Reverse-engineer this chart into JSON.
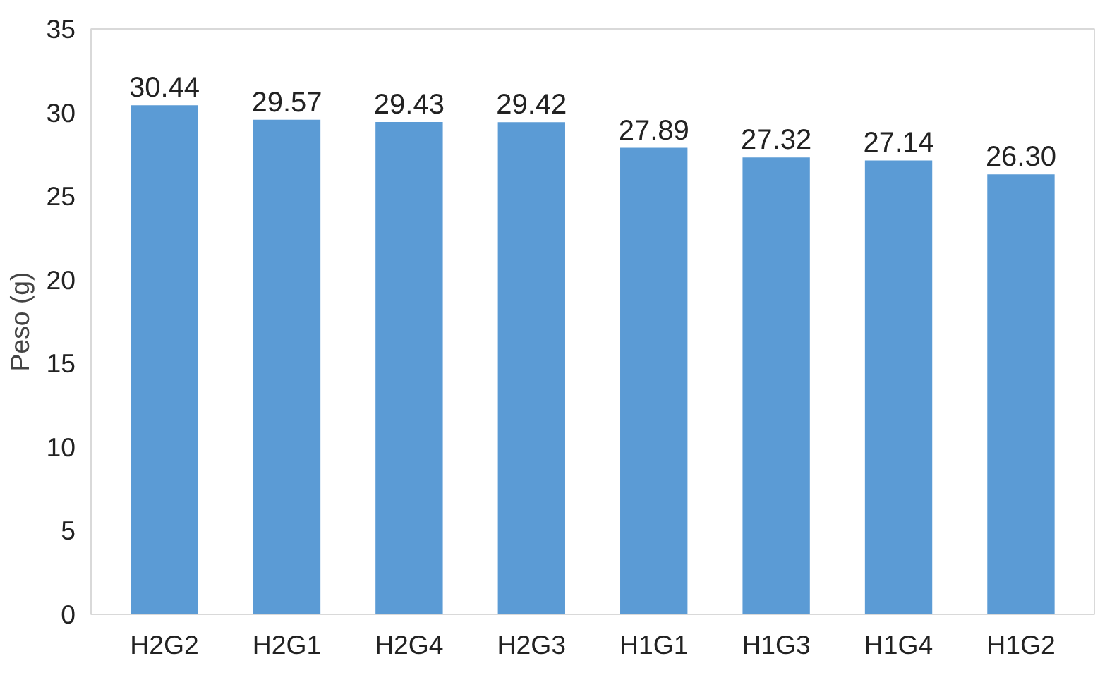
{
  "chart_data": {
    "type": "bar",
    "ylabel": "Peso (g)",
    "categories": [
      "H2G2",
      "H2G1",
      "H2G4",
      "H2G3",
      "H1G1",
      "H1G3",
      "H1G4",
      "H1G2"
    ],
    "values": [
      30.44,
      29.57,
      29.43,
      29.42,
      27.89,
      27.32,
      27.14,
      26.3
    ],
    "value_labels": [
      "30.44",
      "29.57",
      "29.43",
      "29.42",
      "27.89",
      "27.32",
      "27.14",
      "26.30"
    ],
    "color": "#5b9bd5",
    "ylim": [
      0,
      35
    ],
    "yticks": [
      0,
      5,
      10,
      15,
      20,
      25,
      30,
      35
    ],
    "grid": false
  }
}
